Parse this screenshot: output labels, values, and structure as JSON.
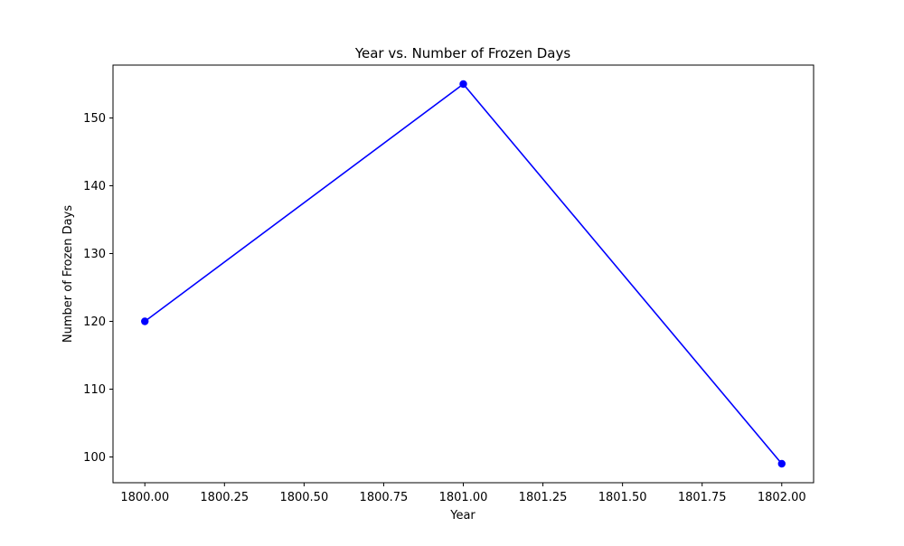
{
  "chart_data": {
    "type": "line",
    "title": "Year vs. Number of Frozen Days",
    "xlabel": "Year",
    "ylabel": "Number of Frozen Days",
    "xlim": [
      1799.9,
      1802.1
    ],
    "ylim": [
      96.2,
      157.8
    ],
    "x_ticks": [
      1800.0,
      1800.25,
      1800.5,
      1800.75,
      1801.0,
      1801.25,
      1801.5,
      1801.75,
      1802.0
    ],
    "x_tick_labels": [
      "1800.00",
      "1800.25",
      "1800.50",
      "1800.75",
      "1801.00",
      "1801.25",
      "1801.50",
      "1801.75",
      "1802.00"
    ],
    "y_ticks": [
      100,
      110,
      120,
      130,
      140,
      150
    ],
    "y_tick_labels": [
      "100",
      "110",
      "120",
      "130",
      "140",
      "150"
    ],
    "grid": false,
    "series": [
      {
        "color": "#0000ff",
        "marker": "circle",
        "x": [
          1800,
          1801,
          1802
        ],
        "y": [
          120,
          155,
          99
        ]
      }
    ]
  }
}
